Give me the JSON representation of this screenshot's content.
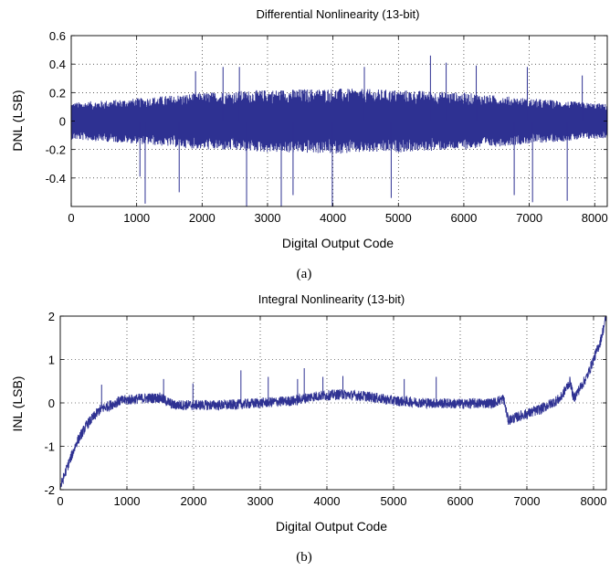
{
  "chart_data": [
    {
      "type": "line",
      "title": "Differential Nonlinearity (13-bit)",
      "xlabel": "Digital Output Code",
      "ylabel": "DNL (LSB)",
      "xlim": [
        0,
        8192
      ],
      "ylim": [
        -0.6,
        0.6
      ],
      "xticks": [
        "0",
        "1000",
        "2000",
        "3000",
        "4000",
        "5000",
        "6000",
        "7000",
        "8000"
      ],
      "yticks": [
        "-0.4",
        "-0.2",
        "0",
        "0.2",
        "0.4",
        "0.6"
      ],
      "grid": true,
      "color": "#2e3192",
      "caption": "(a)",
      "envelope": {
        "x": [
          0,
          1000,
          2000,
          3000,
          4000,
          5000,
          6000,
          7000,
          8192
        ],
        "amplitude": [
          0.13,
          0.16,
          0.2,
          0.22,
          0.23,
          0.22,
          0.2,
          0.16,
          0.12
        ]
      },
      "spikes": [
        {
          "x": 1050,
          "y": -0.39
        },
        {
          "x": 1130,
          "y": -0.58
        },
        {
          "x": 1650,
          "y": -0.5
        },
        {
          "x": 1900,
          "y": 0.35
        },
        {
          "x": 2320,
          "y": 0.38
        },
        {
          "x": 2570,
          "y": 0.38
        },
        {
          "x": 2680,
          "y": -0.6
        },
        {
          "x": 3210,
          "y": -0.6
        },
        {
          "x": 3390,
          "y": -0.52
        },
        {
          "x": 3990,
          "y": -0.6
        },
        {
          "x": 4480,
          "y": 0.38
        },
        {
          "x": 4890,
          "y": -0.54
        },
        {
          "x": 5490,
          "y": 0.46
        },
        {
          "x": 5730,
          "y": 0.41
        },
        {
          "x": 6190,
          "y": 0.39
        },
        {
          "x": 6770,
          "y": -0.52
        },
        {
          "x": 6970,
          "y": 0.38
        },
        {
          "x": 7050,
          "y": -0.57
        },
        {
          "x": 7580,
          "y": -0.56
        },
        {
          "x": 7810,
          "y": 0.32
        }
      ]
    },
    {
      "type": "line",
      "title": "Integral Nonlinearity (13-bit)",
      "xlabel": "Digital Output Code",
      "ylabel": "INL (LSB)",
      "xlim": [
        0,
        8192
      ],
      "ylim": [
        -2,
        2
      ],
      "xticks": [
        "0",
        "1000",
        "2000",
        "3000",
        "4000",
        "5000",
        "6000",
        "7000",
        "8000"
      ],
      "yticks": [
        "-2",
        "-1",
        "0",
        "1",
        "2"
      ],
      "grid": true,
      "color": "#2e3192",
      "caption": "(b)",
      "trend": {
        "x": [
          0,
          100,
          250,
          400,
          600,
          900,
          1200,
          1500,
          1700,
          2000,
          2500,
          3000,
          3500,
          3800,
          4200,
          4600,
          5000,
          5500,
          6000,
          6500,
          6650,
          6720,
          6900,
          7200,
          7500,
          7650,
          7700,
          7900,
          8100,
          8192
        ],
        "y": [
          -1.95,
          -1.5,
          -0.9,
          -0.5,
          -0.15,
          0.05,
          0.1,
          0.12,
          -0.05,
          -0.05,
          -0.05,
          0.0,
          0.05,
          0.15,
          0.2,
          0.15,
          0.05,
          0.0,
          -0.02,
          0.0,
          0.1,
          -0.4,
          -0.3,
          -0.15,
          0.1,
          0.5,
          0.1,
          0.6,
          1.4,
          2.0
        ]
      },
      "noise_amplitude": 0.12,
      "spikes": [
        {
          "x": 620,
          "y": 0.42
        },
        {
          "x": 1550,
          "y": 0.55
        },
        {
          "x": 1990,
          "y": 0.45
        },
        {
          "x": 2710,
          "y": 0.75
        },
        {
          "x": 3120,
          "y": 0.6
        },
        {
          "x": 3560,
          "y": 0.55
        },
        {
          "x": 3660,
          "y": 0.8
        },
        {
          "x": 3940,
          "y": 0.6
        },
        {
          "x": 4240,
          "y": 0.62
        },
        {
          "x": 5160,
          "y": 0.55
        },
        {
          "x": 5640,
          "y": 0.6
        }
      ]
    }
  ]
}
